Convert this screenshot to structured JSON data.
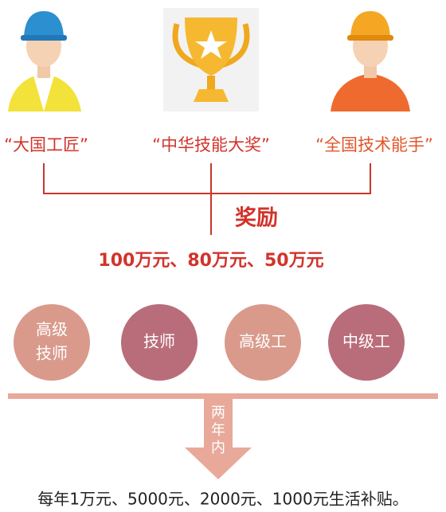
{
  "awards": [
    "“大国工匠”",
    "“中华技能大奖”",
    "“全国技术能手”"
  ],
  "reward_title": "奖励",
  "reward_amounts": "100万元、80万元、50万元",
  "levels": [
    [
      "高级",
      "技师"
    ],
    [
      "技师"
    ],
    [
      "高级工"
    ],
    [
      "中级工"
    ]
  ],
  "arrow_text": [
    "两",
    "年",
    "内"
  ],
  "subsidy": "每年1万元、5000元、2000元、1000元生活补贴。"
}
